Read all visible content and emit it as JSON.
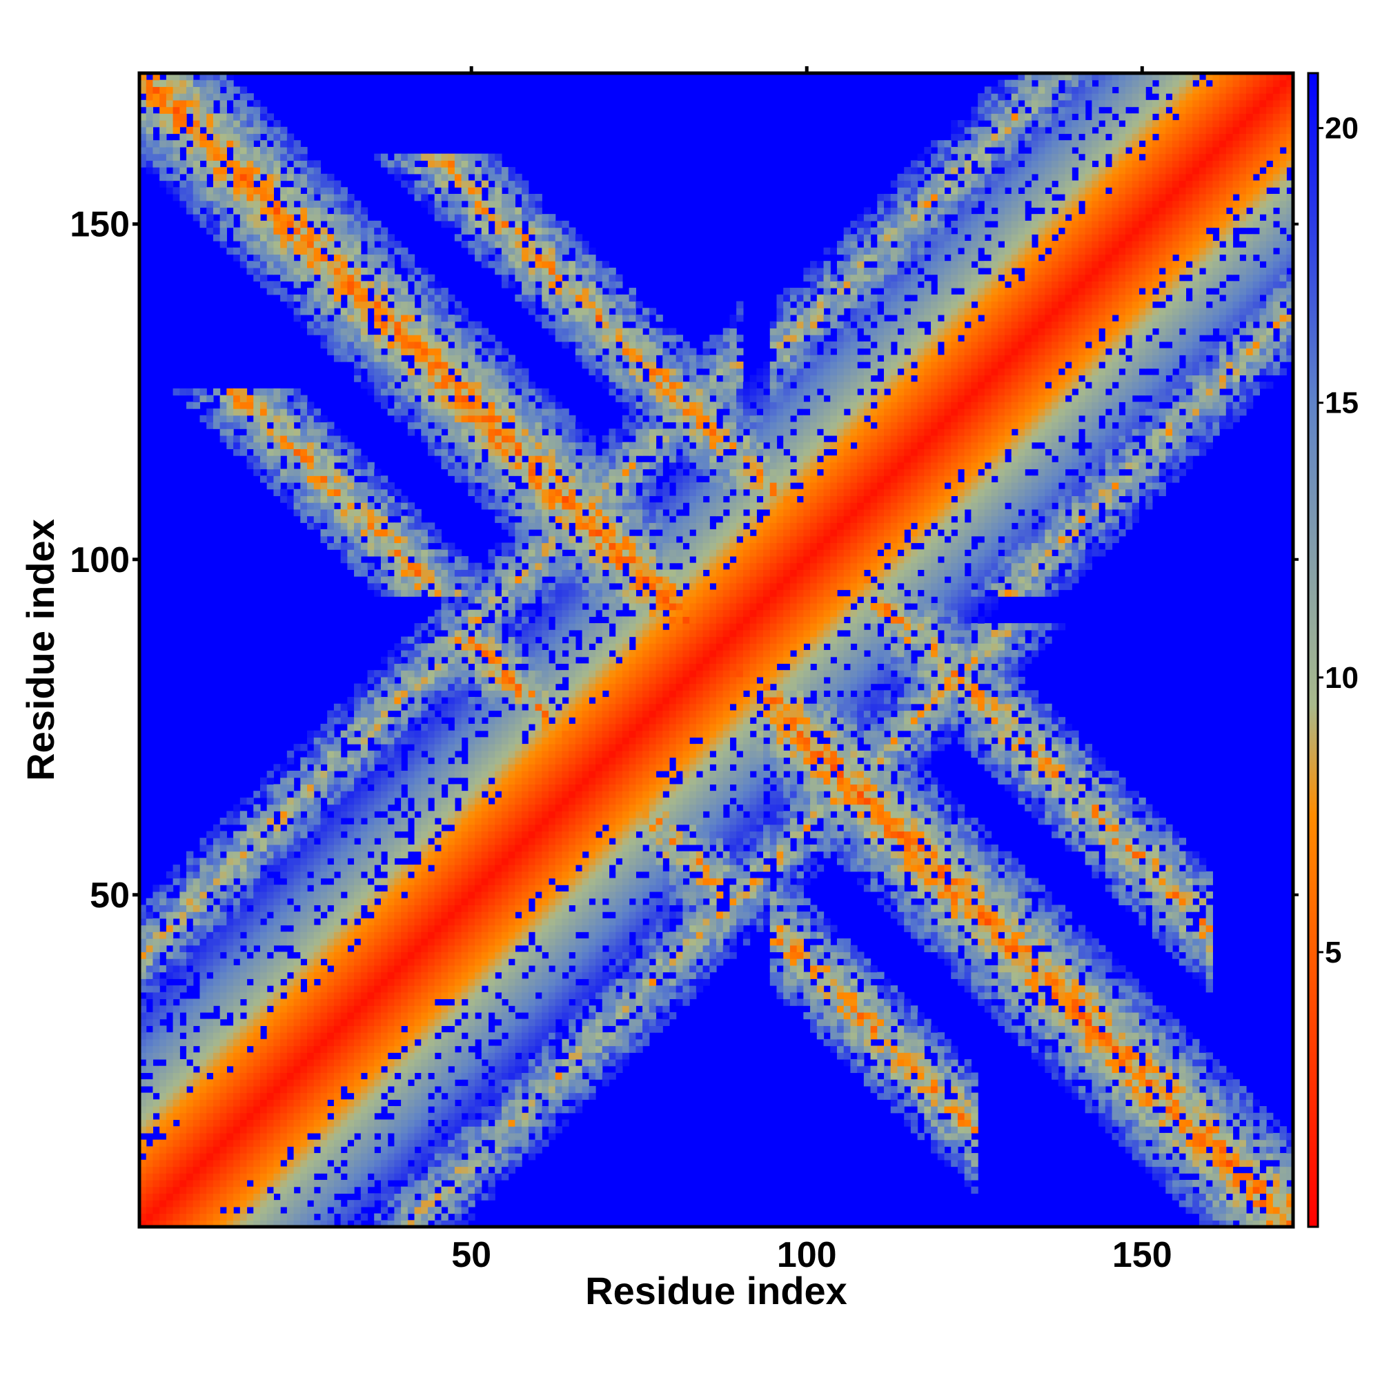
{
  "chart_data": {
    "type": "heatmap",
    "title": "",
    "xlabel": "Residue index",
    "ylabel": "Residue index",
    "xlim": [
      1,
      172
    ],
    "ylim": [
      1,
      172
    ],
    "x_ticks": [
      50,
      100,
      150
    ],
    "y_ticks": [
      50,
      100,
      150
    ],
    "x_tick_labels": [
      "50",
      "100",
      "150"
    ],
    "y_tick_labels": [
      "50",
      "100",
      "150"
    ],
    "n_residues": 172,
    "colorbar": {
      "range": [
        0,
        21
      ],
      "ticks": [
        5,
        10,
        15,
        20
      ],
      "tick_labels": [
        "5",
        "10",
        "15",
        "20"
      ],
      "colors": [
        "#ff0000",
        "#ff8c00",
        "#a8b98c",
        "#5f83c8",
        "#0000ff"
      ],
      "stops": [
        0,
        7.5,
        9.5,
        15,
        21
      ]
    },
    "background_color": "#0000ff",
    "features": {
      "diagonal": "minimum distance along main diagonal",
      "antidiagonal_band": "contacts between residues ~1-45 and ~125-172 and along i+j≈172"
    }
  }
}
